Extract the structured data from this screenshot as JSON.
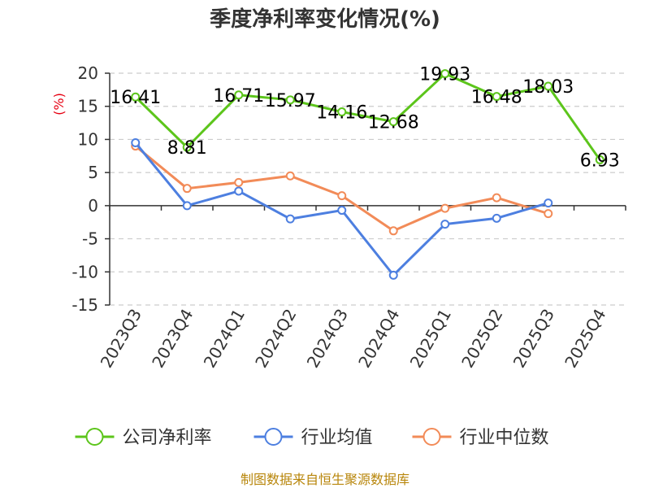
{
  "chart_data": {
    "type": "line",
    "title": "季度净利率变化情况(%)",
    "ylabel": "(%)",
    "ylim": [
      -15,
      20
    ],
    "yticks": [
      20,
      15,
      10,
      5,
      0,
      -5,
      -10,
      -15
    ],
    "grid": true,
    "legend_position": "bottom",
    "categories": [
      "2023Q3",
      "2023Q4",
      "2024Q1",
      "2024Q2",
      "2024Q3",
      "2024Q4",
      "2025Q1",
      "2025Q2",
      "2025Q3",
      "2025Q4"
    ],
    "series": [
      {
        "name": "公司净利率",
        "color": "#5cc51b",
        "values": [
          16.41,
          8.81,
          16.71,
          15.97,
          14.16,
          12.68,
          19.93,
          16.48,
          18.03,
          6.93
        ],
        "labels": [
          "16.41",
          "8.81",
          "16.71",
          "15.97",
          "14.16",
          "12.68",
          "19.93",
          "16.48",
          "18.03",
          "6.93"
        ]
      },
      {
        "name": "行业均值",
        "color": "#4d7fe0",
        "values": [
          9.5,
          0.0,
          2.2,
          -2.0,
          -0.7,
          -10.5,
          -2.8,
          -1.9,
          0.4,
          null
        ]
      },
      {
        "name": "行业中位数",
        "color": "#f28b58",
        "values": [
          9.0,
          2.6,
          3.5,
          4.5,
          1.5,
          -3.8,
          -0.4,
          1.2,
          -1.2,
          null
        ]
      }
    ]
  },
  "footer": {
    "source": "制图数据来自恒生聚源数据库"
  }
}
